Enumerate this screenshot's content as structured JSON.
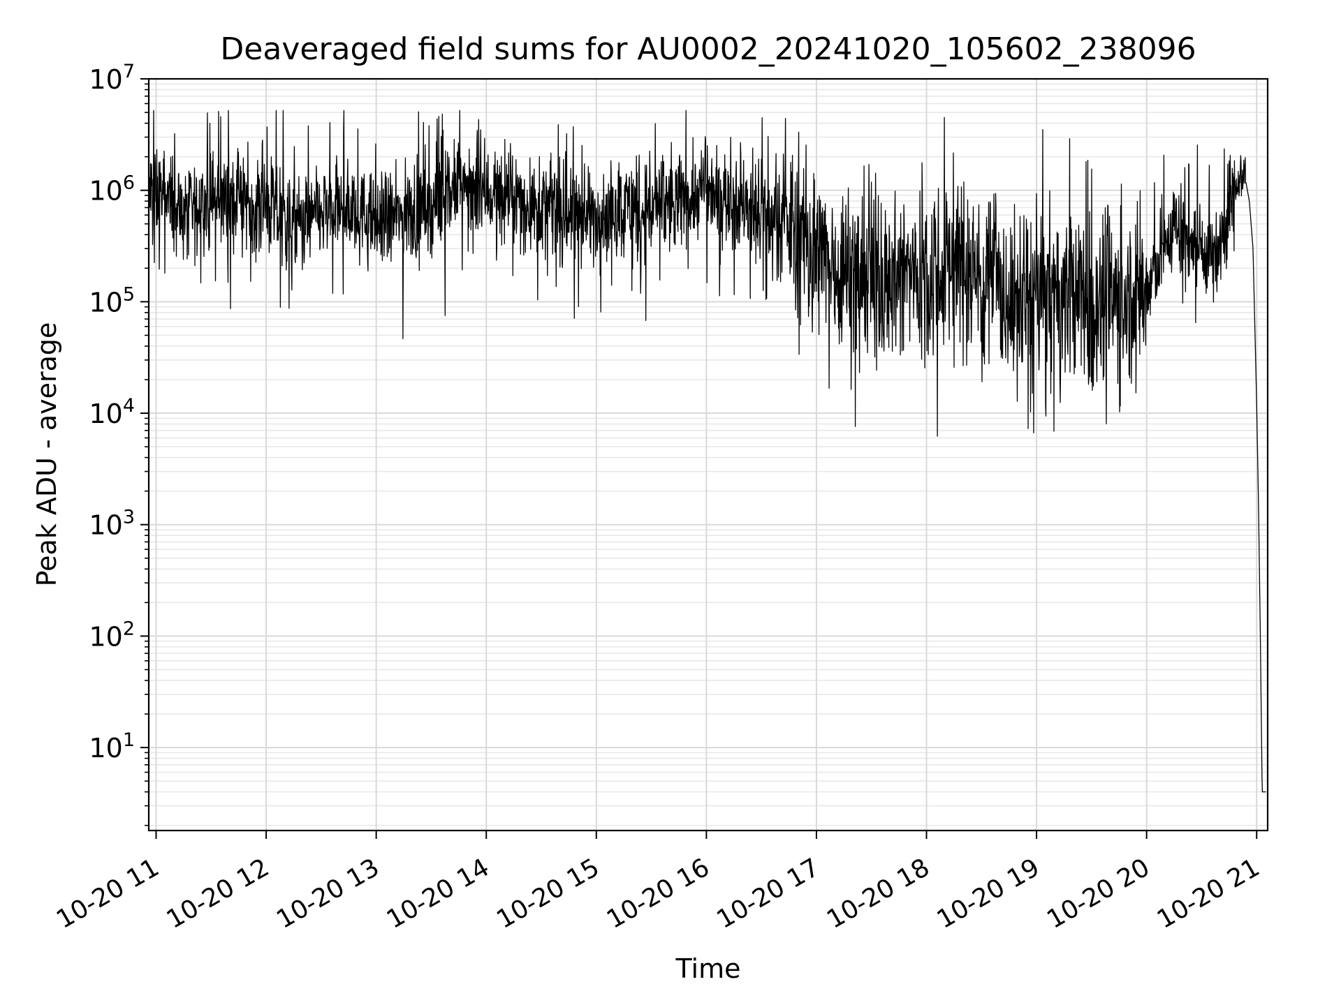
{
  "chart_data": {
    "type": "line",
    "title": "Deaveraged field sums for AU0002_20241020_105602_238096",
    "xlabel": "Time",
    "ylabel": "Peak ADU - average",
    "yscale": "log",
    "ylim": [
      1.8,
      10000000
    ],
    "xlim": [
      "2024-10-20T10:56:00",
      "2024-10-20T21:06:00"
    ],
    "grid": true,
    "legend": "none",
    "line_color": "#000000",
    "x_tick_labels": [
      "10-20 11",
      "10-20 12",
      "10-20 13",
      "10-20 14",
      "10-20 15",
      "10-20 16",
      "10-20 17",
      "10-20 18",
      "10-20 19",
      "10-20 20",
      "10-20 21"
    ],
    "x_ticks": [
      "2024-10-20T11:00",
      "2024-10-20T12:00",
      "2024-10-20T13:00",
      "2024-10-20T14:00",
      "2024-10-20T15:00",
      "2024-10-20T16:00",
      "2024-10-20T17:00",
      "2024-10-20T18:00",
      "2024-10-20T19:00",
      "2024-10-20T20:00",
      "2024-10-20T21:00"
    ],
    "y_ticks": [
      10,
      100,
      1000,
      10000,
      100000,
      1000000,
      10000000
    ],
    "y_tick_bases": [
      "10",
      "10",
      "10",
      "10",
      "10",
      "10",
      "10"
    ],
    "y_tick_exponents": [
      "1",
      "2",
      "3",
      "4",
      "5",
      "6",
      "7"
    ],
    "series": [
      {
        "x": [
          "2024-10-20T10:56",
          "2024-10-20T11:00",
          "2024-10-20T11:15",
          "2024-10-20T11:30",
          "2024-10-20T11:45",
          "2024-10-20T12:00",
          "2024-10-20T12:15",
          "2024-10-20T12:30",
          "2024-10-20T12:45",
          "2024-10-20T13:00",
          "2024-10-20T13:15",
          "2024-10-20T13:30",
          "2024-10-20T13:45",
          "2024-10-20T14:00",
          "2024-10-20T14:15",
          "2024-10-20T14:30",
          "2024-10-20T14:45",
          "2024-10-20T15:00",
          "2024-10-20T15:15",
          "2024-10-20T15:30",
          "2024-10-20T15:45",
          "2024-10-20T16:00",
          "2024-10-20T16:15",
          "2024-10-20T16:30",
          "2024-10-20T16:45",
          "2024-10-20T17:00",
          "2024-10-20T17:15",
          "2024-10-20T17:30",
          "2024-10-20T17:45",
          "2024-10-20T18:00",
          "2024-10-20T18:15",
          "2024-10-20T18:30",
          "2024-10-20T18:45",
          "2024-10-20T19:00",
          "2024-10-20T19:15",
          "2024-10-20T19:30",
          "2024-10-20T19:45",
          "2024-10-20T20:00",
          "2024-10-20T20:15",
          "2024-10-20T20:30",
          "2024-10-20T20:40",
          "2024-10-20T20:45",
          "2024-10-20T20:50",
          "2024-10-20T20:53",
          "2024-10-20T20:56",
          "2024-10-20T20:58",
          "2024-10-20T21:00",
          "2024-10-20T21:01",
          "2024-10-20T21:02",
          "2024-10-20T21:03",
          "2024-10-20T21:04",
          "2024-10-20T21:05"
        ],
        "y": [
          900000,
          1000000,
          600000,
          800000,
          900000,
          700000,
          500000,
          600000,
          700000,
          500000,
          600000,
          700000,
          1100000,
          1000000,
          800000,
          700000,
          600000,
          600000,
          700000,
          700000,
          800000,
          1000000,
          800000,
          600000,
          500000,
          250000,
          200000,
          180000,
          170000,
          200000,
          220000,
          180000,
          100000,
          110000,
          110000,
          100000,
          110000,
          120000,
          500000,
          300000,
          250000,
          800000,
          1300000,
          1500000,
          800000,
          300000,
          12000,
          1500,
          100,
          4,
          4,
          4
        ]
      }
    ]
  }
}
